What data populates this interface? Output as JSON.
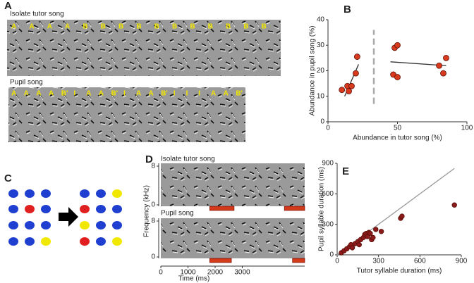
{
  "panels": {
    "A": {
      "label": "A",
      "tutor_title": "Isolate tutor song",
      "tutor_syllables": [
        "A",
        "A",
        "A",
        "A",
        "B",
        "B",
        "B",
        "B",
        "B",
        "B",
        "B",
        "B",
        "B",
        "B",
        "B"
      ],
      "pupil_title": "Pupil song",
      "pupil_syllables": [
        "A",
        "A",
        "A",
        "A",
        "B'",
        "I",
        "A",
        "A",
        "B'",
        "I",
        "A",
        "A",
        "B'",
        "I",
        "I",
        "I",
        "A",
        "A",
        "B'"
      ]
    },
    "C": {
      "label": "C"
    }
  },
  "chart_data": [
    {
      "type": "scatter",
      "label": "B",
      "xlabel": "Abundance in tutor song (%)",
      "ylabel": "Abundance in pupil song (%)",
      "x": [
        10,
        14,
        15,
        17,
        20,
        21,
        47,
        48,
        50,
        50,
        80,
        83,
        85
      ],
      "values": [
        12.5,
        14,
        12,
        14,
        19,
        25.5,
        18.5,
        29,
        30,
        17.5,
        22,
        19,
        25
      ],
      "color": "#d93a1e",
      "fits": [
        {
          "x": [
            12,
            22
          ],
          "values": [
            10,
            22.5
          ],
          "color": "#333333"
        },
        {
          "x": [
            45,
            85
          ],
          "values": [
            23.5,
            22
          ],
          "color": "#333333"
        }
      ],
      "divider": {
        "x": 33,
        "values": [
          7,
          36
        ],
        "color": "#aaaaaa"
      },
      "xlim": [
        0,
        100
      ],
      "xticks": [
        0,
        50,
        100
      ],
      "ylim": [
        0,
        40
      ],
      "yticks": [
        0,
        10,
        20,
        30,
        40
      ]
    },
    {
      "type": "spectrogram",
      "label": "D",
      "xlabel": "Time (ms)",
      "ylabel": "Frequency (kHz)",
      "xlim": [
        0,
        5300
      ],
      "xticks": [
        0,
        1000,
        2000,
        3000
      ],
      "ylim": [
        0,
        8
      ],
      "yticks": [
        0,
        8
      ],
      "color": "#d23a1a",
      "panels": [
        {
          "title": "Isolate tutor song",
          "segments": [
            [
              1800,
              2700
            ],
            [
              4550,
              5300
            ]
          ]
        },
        {
          "title": "Pupil song",
          "segments": [
            [
              1800,
              2600
            ],
            [
              4850,
              5300
            ]
          ]
        }
      ]
    },
    {
      "type": "scatter",
      "label": "E",
      "xlabel": "Tutor syllable duration (ms)",
      "ylabel": "Pupil syllable duration (ms)",
      "x": [
        30,
        50,
        70,
        90,
        100,
        110,
        130,
        150,
        160,
        170,
        190,
        200,
        210,
        220,
        230,
        240,
        250,
        260,
        280,
        320,
        460,
        470,
        850
      ],
      "values": [
        20,
        40,
        60,
        80,
        100,
        70,
        110,
        130,
        100,
        150,
        170,
        200,
        210,
        180,
        220,
        210,
        150,
        170,
        250,
        230,
        360,
        380,
        490
      ],
      "color": "#8b1a1a",
      "fits": [
        {
          "x": [
            0,
            850
          ],
          "values": [
            0,
            850
          ],
          "color": "#999999"
        }
      ],
      "xlim": [
        0,
        900
      ],
      "xticks": [
        0,
        300,
        600,
        900
      ],
      "ylim": [
        0,
        900
      ],
      "yticks": [
        0,
        300,
        600,
        900
      ]
    }
  ]
}
